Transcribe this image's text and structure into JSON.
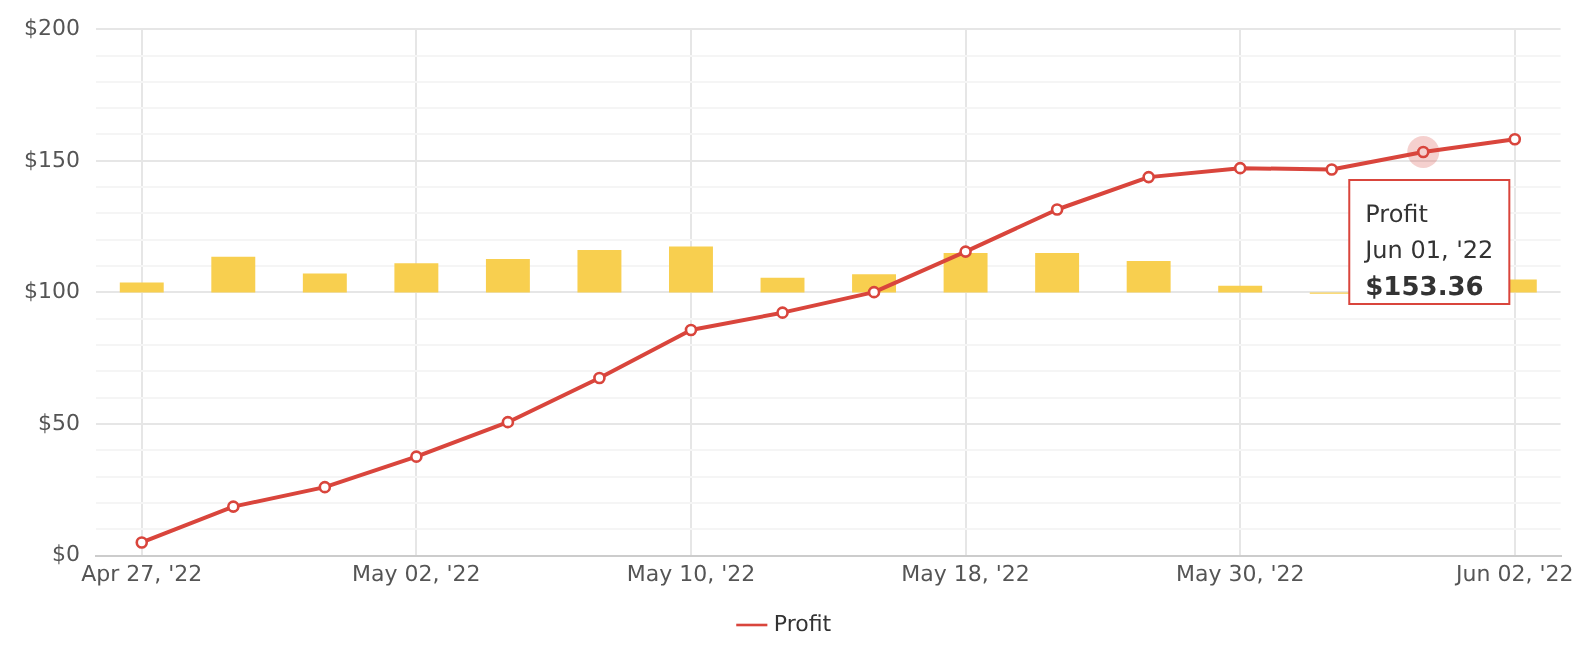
{
  "chart_data": {
    "type": "line",
    "categories": [
      "Apr 27, '22",
      null,
      null,
      "May 02, '22",
      null,
      null,
      "May 10, '22",
      null,
      null,
      "May 18, '22",
      null,
      null,
      "May 30, '22",
      null,
      null,
      "Jun 02, '22"
    ],
    "series": [
      {
        "type": "bar",
        "color": "#f8cf4f",
        "base": [
          100,
          100,
          100,
          100,
          100,
          100,
          100,
          100,
          100,
          100,
          100,
          100,
          100,
          100,
          null,
          100
        ],
        "values": [
          3.8,
          13.5,
          7.2,
          11.1,
          12.7,
          16.1,
          17.4,
          5.6,
          6.9,
          15,
          15,
          11.9,
          2.5,
          -0.5,
          null,
          4.9
        ]
      },
      {
        "name": "Profit",
        "color": "#d9453c",
        "marker": "circle",
        "values": [
          5,
          18.6,
          26,
          37.6,
          50.7,
          67.5,
          85.7,
          92.3,
          100.1,
          115.5,
          131.5,
          143.8,
          147.2,
          146.7,
          153.36,
          158.2
        ]
      }
    ],
    "ylim": [
      0,
      200
    ],
    "yticks": [
      {
        "value": 0,
        "label": "$0"
      },
      {
        "value": 10,
        "label": null
      },
      {
        "value": 20,
        "label": null
      },
      {
        "value": 30,
        "label": null
      },
      {
        "value": 40,
        "label": null
      },
      {
        "value": 50,
        "label": "$50"
      },
      {
        "value": 60,
        "label": null
      },
      {
        "value": 70,
        "label": null
      },
      {
        "value": 80,
        "label": null
      },
      {
        "value": 90,
        "label": null
      },
      {
        "value": 100,
        "label": "$100"
      },
      {
        "value": 110,
        "label": null
      },
      {
        "value": 120,
        "label": null
      },
      {
        "value": 130,
        "label": null
      },
      {
        "value": 140,
        "label": null
      },
      {
        "value": 150,
        "label": "$150"
      },
      {
        "value": 160,
        "label": null
      },
      {
        "value": 170,
        "label": null
      },
      {
        "value": 180,
        "label": null
      },
      {
        "value": 190,
        "label": null
      },
      {
        "value": 200,
        "label": "$200"
      }
    ],
    "grid": true,
    "legend": "bottom",
    "annotations": [
      {
        "text": "Profit\nJun 01, '22\n$153.36",
        "y": 153.36
      }
    ]
  }
}
